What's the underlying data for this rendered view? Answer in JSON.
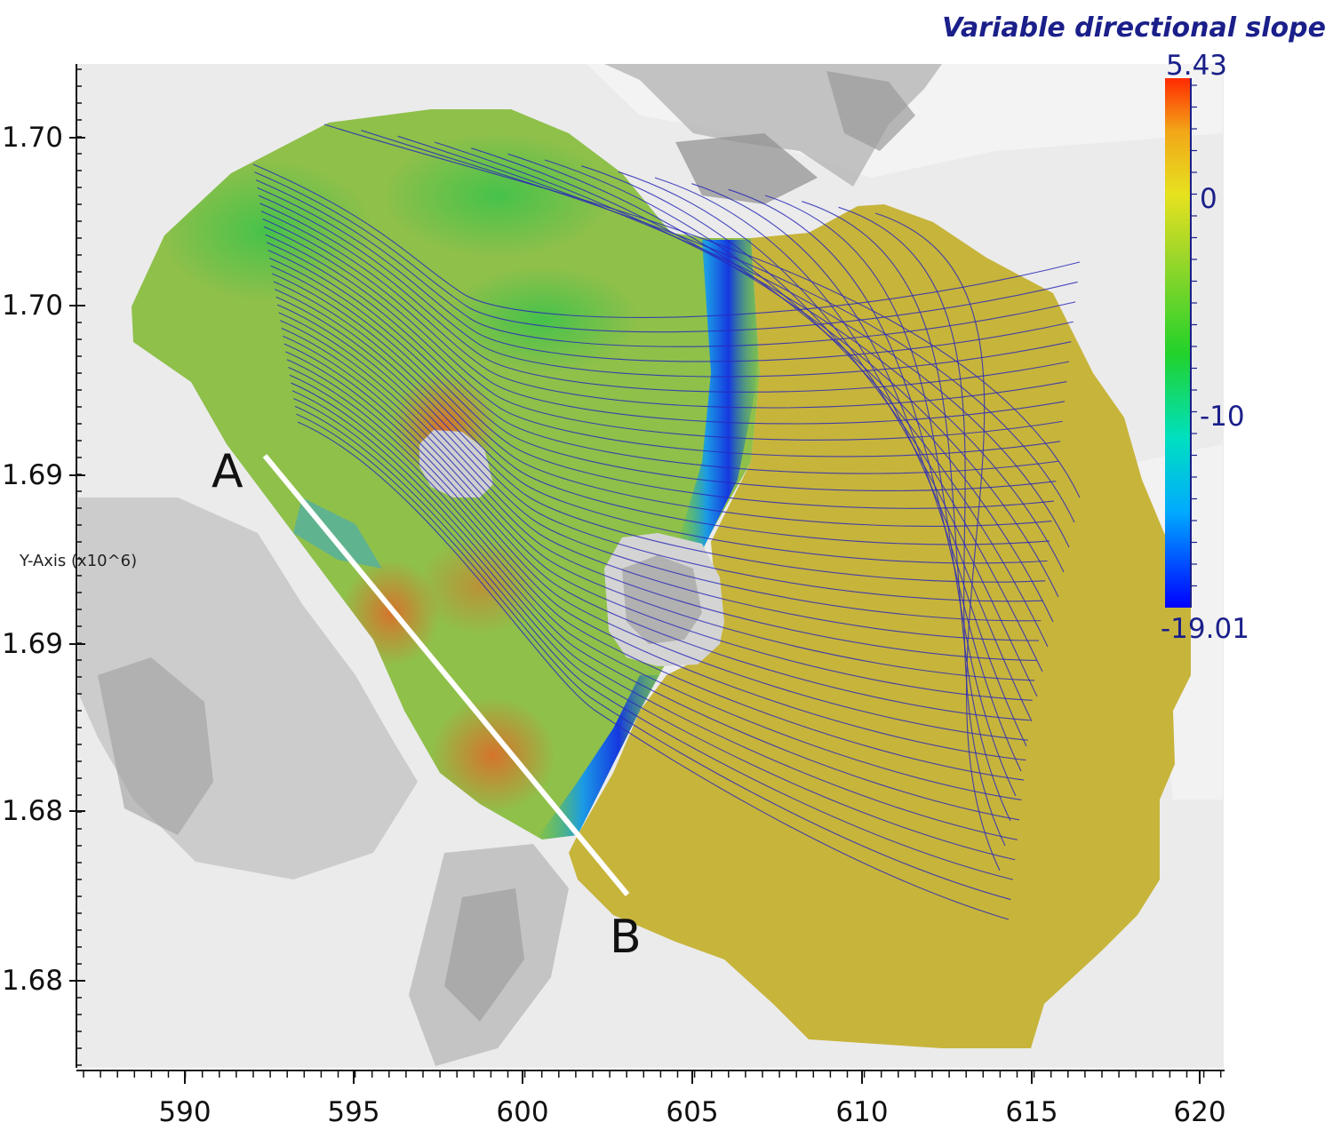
{
  "title": "Variable directional slope",
  "y_axis": {
    "label": "Y-Axis (x10^6)",
    "tick_labels": [
      "1.70",
      "1.70",
      "1.69",
      "1.69",
      "1.68",
      "1.68"
    ]
  },
  "x_axis": {
    "tick_labels": [
      "590",
      "595",
      "600",
      "605",
      "610",
      "615",
      "620"
    ]
  },
  "colorbar": {
    "max_label": "5.43",
    "min_label": "-19.01",
    "tick_labels": [
      "0",
      "-10"
    ],
    "max": 5.43,
    "min": -19.01,
    "colors": [
      "#0000ff",
      "#00aaff",
      "#00e0c0",
      "#22d22a",
      "#9bd62a",
      "#e6e21f",
      "#f2a618",
      "#ff2a00"
    ]
  },
  "profile": {
    "start_label": "A",
    "end_label": "B",
    "color": "#ffffff"
  },
  "layers": {
    "ice_shelf_color": "#c8b43a",
    "grounded_color_range": [
      "#3fb84a",
      "#9bc64a",
      "#d4a23a"
    ],
    "trough_color": "#2a6ee0",
    "flowline_color": "#2a2ab8",
    "background_color": "#e9e9e9"
  }
}
